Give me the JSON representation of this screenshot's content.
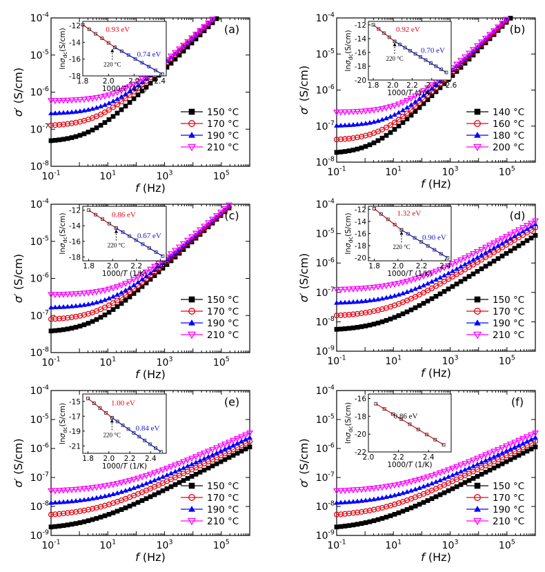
{
  "figure": {
    "x_label": "f (Hz)",
    "y_label": "σ′ (S/cm)",
    "inset_x_label": "1000/T (1/K)",
    "inset_y_label": "ln σdc (S/cm)"
  },
  "colors": {
    "s0": "#000000",
    "s1": "#e8000b",
    "s2": "#0000ff",
    "s3": "#ff00ff",
    "red_text": "#e8000b",
    "blue_text": "#1414d0",
    "inset_line_red": "#e8000b",
    "inset_line_blue": "#0000ff"
  },
  "chart_data": [
    {
      "panel": "(a)",
      "type": "scatter",
      "xscale": "log",
      "yscale": "log",
      "xlim": [
        0.1,
        1000000
      ],
      "ylim": [
        1e-08,
        0.0001
      ],
      "x_ticks": [
        "10-1",
        "101",
        "103",
        "105"
      ],
      "y_ticks": [
        "10-8",
        "10-7",
        "10-6",
        "10-5",
        "10-4"
      ],
      "legend": "right",
      "series": [
        {
          "name": "150 °C",
          "marker": "square",
          "plateau": 4.5e-08,
          "f_onset": 2.5,
          "slope": 0.75
        },
        {
          "name": "170 °C",
          "marker": "circle",
          "plateau": 1.2e-07,
          "f_onset": 5,
          "slope": 0.72
        },
        {
          "name": "190 °C",
          "marker": "triangle-up",
          "plateau": 2.6e-07,
          "f_onset": 12,
          "slope": 0.7
        },
        {
          "name": "210 °C",
          "marker": "triangle-down",
          "plateau": 5.8e-07,
          "f_onset": 35,
          "slope": 0.7
        }
      ],
      "inset": {
        "xlim": [
          1.8,
          2.45
        ],
        "ylim": [
          -18,
          -11.5
        ],
        "x_ticks": [
          "1.8",
          "2.0",
          "2.2",
          "2.4"
        ],
        "y_ticks": [
          "-12",
          "-14",
          "-16",
          "-18"
        ],
        "fits": [
          {
            "label": "0.93 eV",
            "x": [
              1.8,
              2.05
            ],
            "y": [
              -11.9,
              -14.6
            ]
          },
          {
            "label": "0.74 eV",
            "x": [
              2.05,
              2.42
            ],
            "y": [
              -14.6,
              -17.8
            ]
          }
        ],
        "break_label": "220 °C",
        "break_x": 2.03
      }
    },
    {
      "panel": "(b)",
      "type": "scatter",
      "xscale": "log",
      "yscale": "log",
      "xlim": [
        0.1,
        1000000
      ],
      "ylim": [
        1e-08,
        0.0001
      ],
      "x_ticks": [
        "10-1",
        "101",
        "103",
        "105"
      ],
      "y_ticks": [
        "10-8",
        "10-7",
        "10-6",
        "10-5",
        "10-4"
      ],
      "legend": "right",
      "series": [
        {
          "name": "140 °C",
          "marker": "square",
          "plateau": 1.7e-08,
          "f_onset": 2,
          "slope": 0.78
        },
        {
          "name": "160 °C",
          "marker": "circle",
          "plateau": 4e-08,
          "f_onset": 4,
          "slope": 0.76
        },
        {
          "name": "180 °C",
          "marker": "triangle-up",
          "plateau": 1e-07,
          "f_onset": 10,
          "slope": 0.74
        },
        {
          "name": "200 °C",
          "marker": "triangle-down",
          "plateau": 2.4e-07,
          "f_onset": 25,
          "slope": 0.72
        }
      ],
      "inset": {
        "xlim": [
          1.75,
          2.6
        ],
        "ylim": [
          -20,
          -11.5
        ],
        "x_ticks": [
          "1.8",
          "2.0",
          "2.2",
          "2.4",
          "2.6"
        ],
        "y_ticks": [
          "-12",
          "-14",
          "-16",
          "-18",
          "-20"
        ],
        "fits": [
          {
            "label": "0.92 eV",
            "x": [
              1.8,
              2.02
            ],
            "y": [
              -12.0,
              -14.4
            ]
          },
          {
            "label": "0.70 eV",
            "x": [
              2.02,
              2.55
            ],
            "y": [
              -14.4,
              -18.9
            ]
          }
        ],
        "break_label": "220 °C",
        "break_x": 2.02
      }
    },
    {
      "panel": "(c)",
      "type": "scatter",
      "xscale": "log",
      "yscale": "log",
      "xlim": [
        0.1,
        1000000
      ],
      "ylim": [
        1e-08,
        0.0001
      ],
      "x_ticks": [
        "10-1",
        "101",
        "103",
        "105"
      ],
      "y_ticks": [
        "10-8",
        "10-7",
        "10-6",
        "10-5",
        "10-4"
      ],
      "legend": "right",
      "series": [
        {
          "name": "150 °C",
          "marker": "square",
          "plateau": 3.5e-08,
          "f_onset": 3,
          "slope": 0.7
        },
        {
          "name": "170 °C",
          "marker": "circle",
          "plateau": 7.5e-08,
          "f_onset": 6,
          "slope": 0.68
        },
        {
          "name": "190 °C",
          "marker": "triangle-up",
          "plateau": 1.6e-07,
          "f_onset": 15,
          "slope": 0.67
        },
        {
          "name": "210 °C",
          "marker": "triangle-down",
          "plateau": 3.6e-07,
          "f_onset": 40,
          "slope": 0.66
        }
      ],
      "inset": {
        "xlim": [
          1.75,
          2.45
        ],
        "ylim": [
          -18.5,
          -11.5
        ],
        "x_ticks": [
          "1.8",
          "2.0",
          "2.2",
          "2.4"
        ],
        "y_ticks": [
          "-12",
          "-14",
          "-16",
          "-18"
        ],
        "fits": [
          {
            "label": "0.86 eV",
            "x": [
              1.8,
              2.03
            ],
            "y": [
              -12.0,
              -14.3
            ]
          },
          {
            "label": "0.67 eV",
            "x": [
              2.03,
              2.42
            ],
            "y": [
              -14.3,
              -17.9
            ]
          }
        ],
        "break_label": "220 °C",
        "break_x": 2.03
      }
    },
    {
      "panel": "(d)",
      "type": "scatter",
      "xscale": "log",
      "yscale": "log",
      "xlim": [
        0.1,
        1000000
      ],
      "ylim": [
        1e-09,
        0.0001
      ],
      "x_ticks": [
        "10-1",
        "101",
        "103",
        "105"
      ],
      "y_ticks": [
        "10-9",
        "10-8",
        "10-7",
        "10-6",
        "10-5",
        "10-4"
      ],
      "legend": "right",
      "series": [
        {
          "name": "150 °C",
          "marker": "square",
          "plateau": 5e-09,
          "f_onset": 4,
          "slope": 0.6
        },
        {
          "name": "170 °C",
          "marker": "circle",
          "plateau": 1.5e-08,
          "f_onset": 6,
          "slope": 0.58
        },
        {
          "name": "190 °C",
          "marker": "triangle-up",
          "plateau": 4.2e-08,
          "f_onset": 15,
          "slope": 0.56
        },
        {
          "name": "210 °C",
          "marker": "triangle-down",
          "plateau": 1.2e-07,
          "f_onset": 30,
          "slope": 0.52
        }
      ],
      "inset": {
        "xlim": [
          1.75,
          2.45
        ],
        "ylim": [
          -20.5,
          -11.5
        ],
        "x_ticks": [
          "1.8",
          "2.0",
          "2.2",
          "2.4"
        ],
        "y_ticks": [
          "-12",
          "-14",
          "-16",
          "-18",
          "-20"
        ],
        "fits": [
          {
            "label": "1.32 eV",
            "x": [
              1.8,
              2.03
            ],
            "y": [
              -11.9,
              -15.4
            ]
          },
          {
            "label": "0.90 eV",
            "x": [
              2.03,
              2.42
            ],
            "y": [
              -15.4,
              -20.0
            ]
          }
        ],
        "break_label": "220 °C",
        "break_x": 2.03
      }
    },
    {
      "panel": "(e)",
      "type": "scatter",
      "xscale": "log",
      "yscale": "log",
      "xlim": [
        0.1,
        1000000
      ],
      "ylim": [
        1e-09,
        0.0001
      ],
      "x_ticks": [
        "10-1",
        "101",
        "103",
        "105"
      ],
      "y_ticks": [
        "10-9",
        "10-8",
        "10-7",
        "10-6",
        "10-5",
        "10-4"
      ],
      "legend": "right",
      "series": [
        {
          "name": "150 °C",
          "marker": "square",
          "plateau": 1.6e-09,
          "f_onset": 2,
          "slope": 0.5
        },
        {
          "name": "170 °C",
          "marker": "circle",
          "plateau": 4.5e-09,
          "f_onset": 4,
          "slope": 0.48
        },
        {
          "name": "190 °C",
          "marker": "triangle-up",
          "plateau": 1.2e-08,
          "f_onset": 10,
          "slope": 0.46
        },
        {
          "name": "210 °C",
          "marker": "triangle-down",
          "plateau": 3.2e-08,
          "f_onset": 25,
          "slope": 0.44
        }
      ],
      "inset": {
        "xlim": [
          1.75,
          2.55
        ],
        "ylim": [
          -22,
          -14
        ],
        "x_ticks": [
          "1.8",
          "2.0",
          "2.2",
          "2.4"
        ],
        "y_ticks": [
          "-15",
          "-17",
          "-19",
          "-21"
        ],
        "fits": [
          {
            "label": "1.00 eV",
            "x": [
              1.8,
              2.03
            ],
            "y": [
              -14.6,
              -17.2
            ]
          },
          {
            "label": "0.84 eV",
            "x": [
              2.03,
              2.5
            ],
            "y": [
              -17.2,
              -21.8
            ]
          }
        ],
        "break_label": "220 °C",
        "break_x": 2.03
      }
    },
    {
      "panel": "(f)",
      "type": "scatter",
      "xscale": "log",
      "yscale": "log",
      "xlim": [
        0.1,
        1000000
      ],
      "ylim": [
        1e-09,
        0.0001
      ],
      "x_ticks": [
        "10-1",
        "101",
        "103",
        "105"
      ],
      "y_ticks": [
        "10-9",
        "10-8",
        "10-7",
        "10-6",
        "10-5",
        "10-4"
      ],
      "legend": "right",
      "series": [
        {
          "name": "150 °C",
          "marker": "square",
          "plateau": 1.6e-09,
          "f_onset": 2,
          "slope": 0.5
        },
        {
          "name": "170 °C",
          "marker": "circle",
          "plateau": 4.5e-09,
          "f_onset": 4,
          "slope": 0.48
        },
        {
          "name": "190 °C",
          "marker": "triangle-up",
          "plateau": 1.2e-08,
          "f_onset": 10,
          "slope": 0.46
        },
        {
          "name": "210 °C",
          "marker": "triangle-down",
          "plateau": 3.2e-08,
          "f_onset": 25,
          "slope": 0.44
        }
      ],
      "inset": {
        "xlim": [
          2.0,
          2.55
        ],
        "ylim": [
          -22,
          -15.5
        ],
        "x_ticks": [
          "2.0",
          "2.2",
          "2.4"
        ],
        "y_ticks": [
          "-16",
          "-18",
          "-20",
          "-22"
        ],
        "fits": [
          {
            "label": "0.86 eV",
            "x": [
              2.05,
              2.5
            ],
            "y": [
              -16.6,
              -21.2
            ]
          }
        ],
        "break_label": "",
        "break_x": null
      }
    }
  ]
}
